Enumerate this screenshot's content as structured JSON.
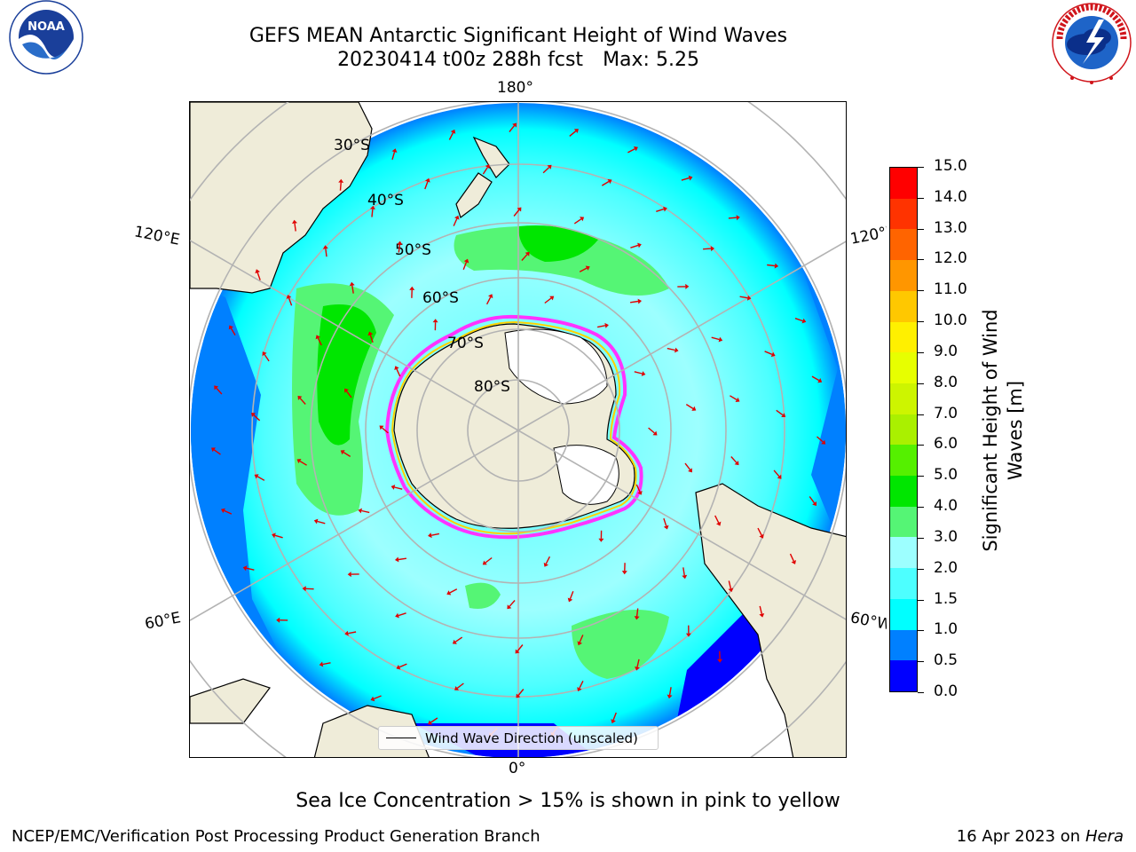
{
  "title": {
    "line1": "GEFS MEAN Antarctic Significant Height of Wind Waves",
    "line2_date": "20230414 t00z 288h fcst",
    "line2_max": "Max: 5.25"
  },
  "logos": {
    "left": {
      "name": "noaa-logo",
      "text": "NOAA",
      "ring_text": "NATIONAL OCEANIC AND ATMOSPHERIC ADMINISTRATION · U.S. DEPARTMENT OF COMMERCE",
      "color": "#1a3f9a"
    },
    "right": {
      "name": "nws-logo",
      "ring_text": "NATIONAL WEATHER SERVICE",
      "color": "#d0151b"
    }
  },
  "map": {
    "projection": "south-polar-stereographic",
    "longitude_labels": {
      "top": "180°",
      "bottom": "0°",
      "upper_left": "120°E",
      "upper_right": "120°W",
      "lower_left": "60°E",
      "lower_right": "60°W"
    },
    "latitude_labels": [
      "30°S",
      "40°S",
      "50°S",
      "60°S",
      "70°S",
      "80°S"
    ],
    "arrow_color": "#e00000",
    "land_color": "#efecd9",
    "ice_colors": [
      "#ff33ff",
      "#ffd200"
    ],
    "gridline_color": "#b3b3b3"
  },
  "legend": {
    "label": "Wind Wave Direction (unscaled)"
  },
  "colorbar": {
    "label_line1": "Significant Height of Wind",
    "label_line2": "Waves [m]",
    "ticks": [
      "0.0",
      "0.5",
      "1.0",
      "1.5",
      "2.0",
      "3.0",
      "4.0",
      "5.0",
      "6.0",
      "7.0",
      "8.0",
      "9.0",
      "10.0",
      "11.0",
      "12.0",
      "13.0",
      "14.0",
      "15.0"
    ],
    "colors": [
      "#0000ff",
      "#0080ff",
      "#00ffff",
      "#4dffff",
      "#9dffff",
      "#55f575",
      "#00e600",
      "#55f000",
      "#aaf000",
      "#cdf500",
      "#e7ff00",
      "#fff000",
      "#ffc800",
      "#ff9600",
      "#ff6400",
      "#ff3300",
      "#ff0000"
    ]
  },
  "note": "Sea Ice Concentration > 15% is shown in pink to yellow",
  "footer": {
    "left": "NCEP/EMC/Verification Post Processing Product Generation Branch",
    "right_date": "16 Apr 2023 on",
    "right_host": "Hera"
  }
}
